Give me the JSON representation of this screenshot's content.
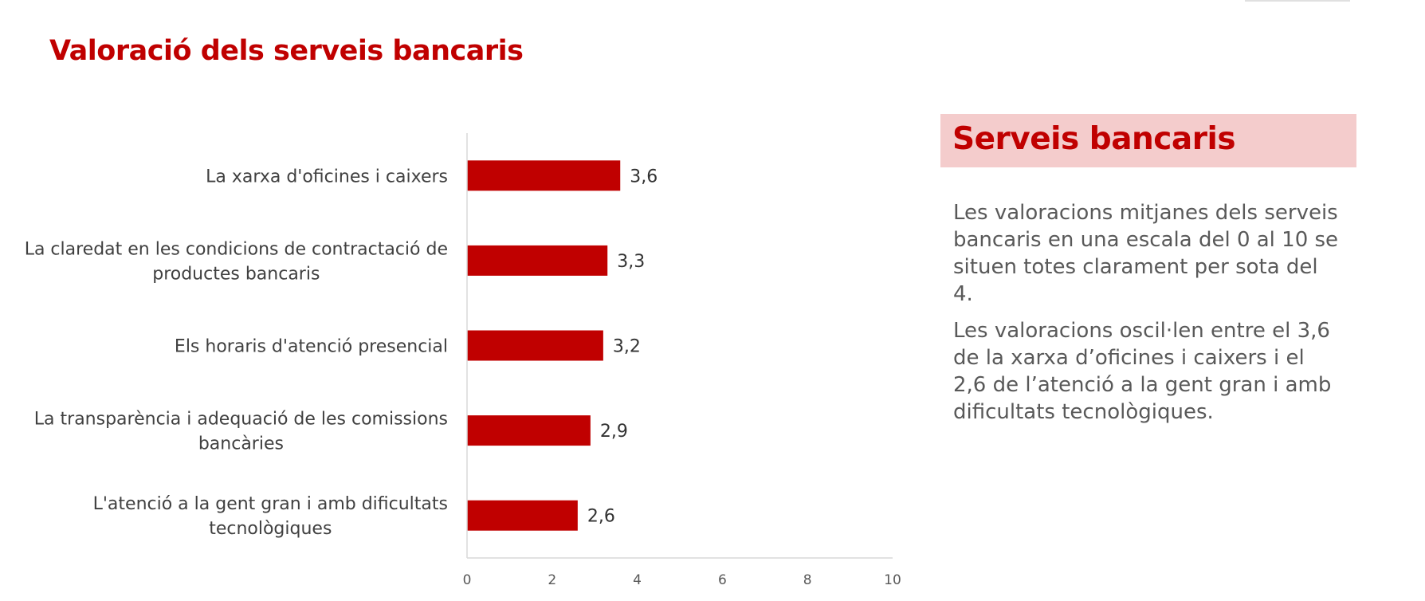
{
  "page": {
    "title": "Valoració dels serveis bancaris"
  },
  "panel": {
    "title": "Serveis bancaris",
    "paragraphs": [
      "Les valoracions mitjanes dels serveis bancaris en una escala del 0 al 10 se situen totes clarament per sota del 4.",
      "Les valoracions oscil·len entre el 3,6 de la xarxa d’oficines i caixers i el 2,6 de l’atenció a la gent gran i amb dificultats tecnològiques."
    ]
  },
  "colors": {
    "accent": "#c00000",
    "panel_header_bg": "#f4cccc",
    "body_text": "#595959"
  },
  "chart_data": {
    "type": "bar",
    "orientation": "horizontal",
    "categories": [
      "La xarxa d'oficines i caixers",
      "La claredat en les condicions de contractació de productes bancaris",
      "Els horaris d'atenció presencial",
      "La transparència i adequació de les comissions bancàries",
      "L'atenció a la gent gran i amb dificultats tecnològiques"
    ],
    "category_lines": [
      [
        "La xarxa d'oficines i caixers"
      ],
      [
        "La claredat en les condicions de contractació de",
        "productes bancaris"
      ],
      [
        "Els horaris d'atenció presencial"
      ],
      [
        "La transparència i adequació de les comissions",
        "bancàries"
      ],
      [
        "L'atenció a la gent gran i amb dificultats",
        "tecnològiques"
      ]
    ],
    "values": [
      3.6,
      3.3,
      3.2,
      2.9,
      2.6
    ],
    "value_labels": [
      "3,6",
      "3,3",
      "3,2",
      "2,9",
      "2,6"
    ],
    "xlim": [
      0,
      10
    ],
    "xticks": [
      0,
      2,
      4,
      6,
      8,
      10
    ],
    "bar_color": "#c00000",
    "grid": false,
    "legend": "none"
  }
}
